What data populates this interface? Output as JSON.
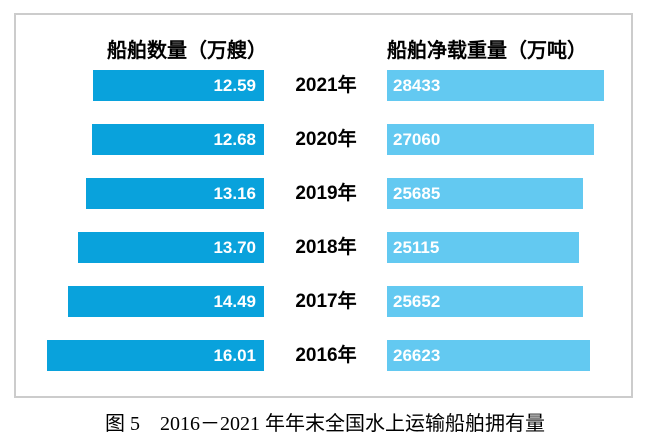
{
  "figure": {
    "left_header": "船舶数量（万艘）",
    "right_header": "船舶净载重量（万吨）",
    "caption": "图 5　2016－2021 年年末全国水上运输船舶拥有量"
  },
  "colors": {
    "left_bar": "#09a2dc",
    "right_bar": "#63c9f1",
    "frame_border": "#cccccc",
    "bar_value_text": "#ffffff"
  },
  "chart_data": {
    "type": "bar",
    "orientation": "horizontal-bidirectional",
    "title": "图 5　2016－2021 年年末全国水上运输船舶拥有量",
    "categories": [
      "2021年",
      "2020年",
      "2019年",
      "2018年",
      "2017年",
      "2016年"
    ],
    "series": [
      {
        "name": "船舶数量（万艘）",
        "side": "left",
        "values": [
          12.59,
          12.68,
          13.16,
          13.7,
          14.49,
          16.01
        ],
        "labels": [
          "12.59",
          "12.68",
          "13.16",
          "13.70",
          "14.49",
          "16.01"
        ],
        "axis_min": 0,
        "axis_max": 16.01
      },
      {
        "name": "船舶净载重量（万吨）",
        "side": "right",
        "values": [
          28433,
          27060,
          25685,
          25115,
          25652,
          26623
        ],
        "labels": [
          "28433",
          "27060",
          "25685",
          "25115",
          "25652",
          "26623"
        ],
        "axis_min": 0,
        "axis_max": 28433
      }
    ],
    "legend_position": "top",
    "grid": false,
    "value_labels": "inside-bar"
  }
}
